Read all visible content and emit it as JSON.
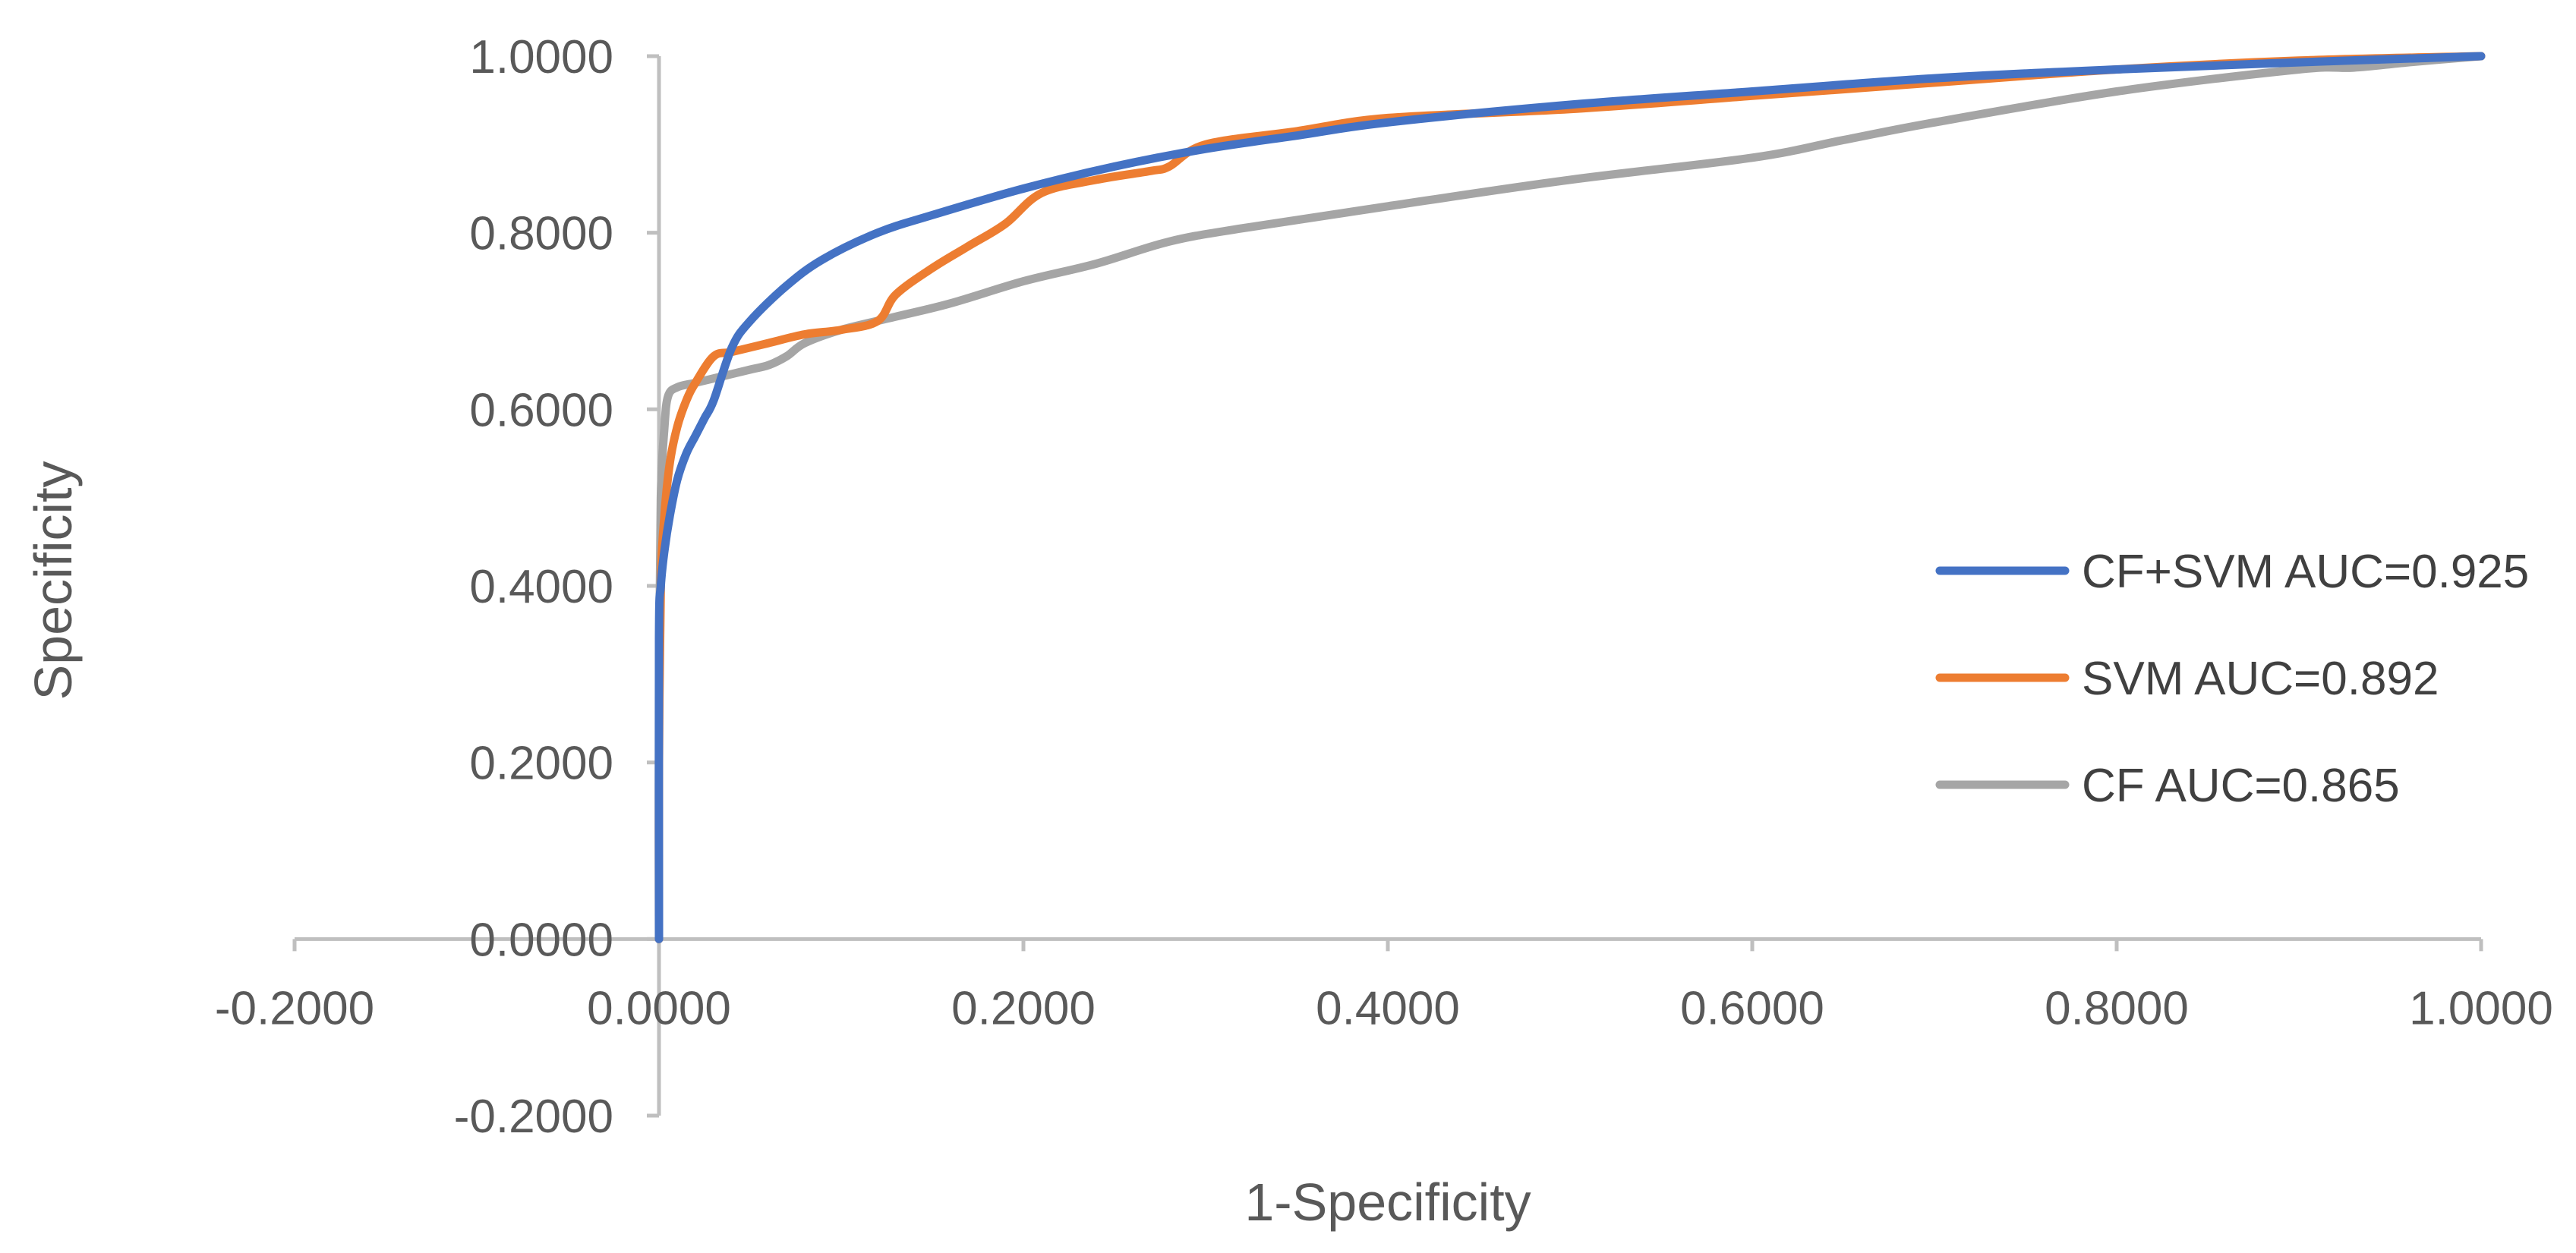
{
  "chart_data": {
    "type": "line",
    "title": "",
    "xlabel": "1-Specificity",
    "ylabel": "Specificity",
    "xlim": [
      -0.2,
      1.0
    ],
    "ylim": [
      -0.2,
      1.0
    ],
    "x_ticks": [
      -0.2,
      0.0,
      0.2,
      0.4,
      0.6,
      0.8,
      1.0
    ],
    "y_ticks": [
      -0.2,
      0.0,
      0.2,
      0.4,
      0.6,
      0.8,
      1.0
    ],
    "x_tick_labels": [
      "-0.2000",
      "0.0000",
      "0.2000",
      "0.4000",
      "0.6000",
      "0.8000",
      "1.0000"
    ],
    "y_tick_labels": [
      "-0.2000",
      "0.0000",
      "0.2000",
      "0.4000",
      "0.6000",
      "0.8000",
      "1.0000"
    ],
    "grid": false,
    "legend_position": "right",
    "series": [
      {
        "name": "CF+SVM AUC=0.925",
        "color": "#4472C4",
        "x": [
          0.0,
          0.0,
          0.001,
          0.003,
          0.006,
          0.01,
          0.015,
          0.02,
          0.025,
          0.03,
          0.04,
          0.05,
          0.07,
          0.09,
          0.12,
          0.15,
          0.2,
          0.25,
          0.3,
          0.35,
          0.4,
          0.5,
          0.6,
          0.7,
          0.8,
          0.9,
          1.0
        ],
        "y": [
          0.0,
          0.34,
          0.4,
          0.44,
          0.48,
          0.52,
          0.55,
          0.57,
          0.59,
          0.61,
          0.67,
          0.7,
          0.74,
          0.77,
          0.8,
          0.82,
          0.85,
          0.875,
          0.895,
          0.91,
          0.925,
          0.945,
          0.96,
          0.975,
          0.985,
          0.993,
          1.0
        ]
      },
      {
        "name": "SVM AUC=0.892",
        "color": "#ED7D31",
        "x": [
          0.0,
          0.0,
          0.001,
          0.003,
          0.006,
          0.01,
          0.015,
          0.02,
          0.03,
          0.04,
          0.06,
          0.08,
          0.1,
          0.12,
          0.13,
          0.15,
          0.17,
          0.19,
          0.21,
          0.24,
          0.27,
          0.28,
          0.3,
          0.35,
          0.4,
          0.5,
          0.6,
          0.7,
          0.8,
          0.9,
          1.0
        ],
        "y": [
          0.0,
          0.2,
          0.4,
          0.48,
          0.54,
          0.58,
          0.61,
          0.63,
          0.66,
          0.665,
          0.675,
          0.685,
          0.69,
          0.7,
          0.73,
          0.76,
          0.785,
          0.81,
          0.845,
          0.86,
          0.87,
          0.875,
          0.9,
          0.915,
          0.93,
          0.94,
          0.955,
          0.97,
          0.985,
          0.995,
          1.0
        ]
      },
      {
        "name": "CF AUC=0.865",
        "color": "#A5A5A5",
        "x": [
          0.0,
          0.0,
          0.001,
          0.003,
          0.005,
          0.01,
          0.02,
          0.03,
          0.05,
          0.06,
          0.07,
          0.08,
          0.1,
          0.13,
          0.16,
          0.2,
          0.24,
          0.28,
          0.32,
          0.4,
          0.5,
          0.6,
          0.65,
          0.7,
          0.8,
          0.9,
          0.93,
          0.96,
          1.0
        ],
        "y": [
          0.0,
          0.3,
          0.5,
          0.58,
          0.615,
          0.625,
          0.63,
          0.635,
          0.645,
          0.65,
          0.66,
          0.675,
          0.69,
          0.705,
          0.72,
          0.745,
          0.765,
          0.79,
          0.805,
          0.83,
          0.86,
          0.885,
          0.905,
          0.925,
          0.96,
          0.985,
          0.987,
          0.993,
          1.0
        ]
      }
    ]
  }
}
